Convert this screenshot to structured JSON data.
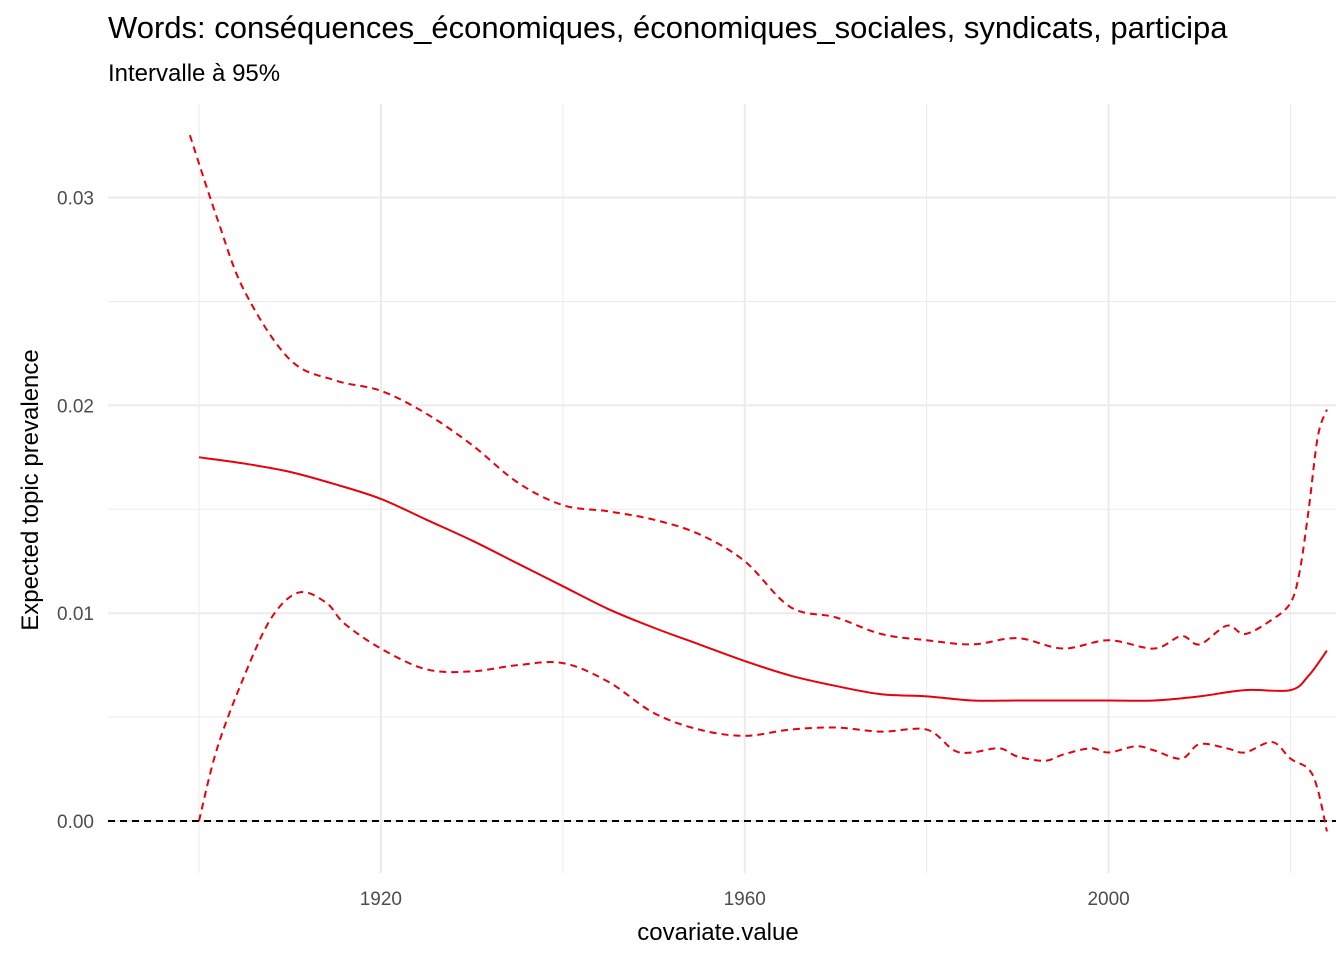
{
  "chart_data": {
    "type": "line",
    "title": "Words: conséquences_économiques, économiques_sociales, syndicats, participa",
    "subtitle": "Intervalle à 95%",
    "xlabel": "covariate.value",
    "ylabel": "Expected topic prevalence",
    "xlim": [
      1890,
      2025
    ],
    "ylim": [
      -0.0025,
      0.0345
    ],
    "x_ticks": [
      1920,
      1960,
      2000
    ],
    "x_tick_labels": [
      "1920",
      "1960",
      "2000"
    ],
    "y_ticks": [
      0,
      0.01,
      0.02,
      0.03
    ],
    "y_tick_labels": [
      "0.00",
      "0.01",
      "0.02",
      "0.03"
    ],
    "grid": true,
    "reference_line": {
      "y": 0,
      "style": "dashed",
      "color": "#000000"
    },
    "colors": {
      "series": "#e8000b",
      "grid": "#ebebeb",
      "reference": "#000000",
      "tick_text": "#4d4d4d"
    },
    "series": [
      {
        "role": "estimate",
        "style": "solid",
        "x": [
          1900,
          1905,
          1910,
          1915,
          1920,
          1925,
          1930,
          1935,
          1940,
          1945,
          1950,
          1955,
          1960,
          1965,
          1970,
          1975,
          1980,
          1985,
          1990,
          1995,
          2000,
          2005,
          2010,
          2015,
          2020,
          2022,
          2024
        ],
        "y": [
          0.0175,
          0.0172,
          0.0168,
          0.0162,
          0.0155,
          0.0145,
          0.0135,
          0.0124,
          0.0113,
          0.0102,
          0.0093,
          0.0085,
          0.0077,
          0.007,
          0.0065,
          0.0061,
          0.006,
          0.0058,
          0.0058,
          0.0058,
          0.0058,
          0.0058,
          0.006,
          0.0063,
          0.0063,
          0.007,
          0.0082
        ]
      },
      {
        "role": "upper 95%",
        "style": "dashed",
        "x": [
          1899,
          1902,
          1905,
          1910,
          1915,
          1920,
          1925,
          1930,
          1935,
          1940,
          1945,
          1950,
          1955,
          1960,
          1965,
          1970,
          1975,
          1980,
          1985,
          1990,
          1995,
          2000,
          2005,
          2008,
          2010,
          2013,
          2015,
          2018,
          2020,
          2021,
          2022,
          2023,
          2024
        ],
        "y": [
          0.033,
          0.029,
          0.0255,
          0.0222,
          0.0212,
          0.0207,
          0.0196,
          0.0181,
          0.0163,
          0.0152,
          0.0149,
          0.0145,
          0.0138,
          0.0125,
          0.0103,
          0.0098,
          0.009,
          0.0087,
          0.0085,
          0.0088,
          0.0083,
          0.0087,
          0.0083,
          0.0089,
          0.0085,
          0.0094,
          0.009,
          0.0097,
          0.0105,
          0.012,
          0.015,
          0.0185,
          0.0198
        ]
      },
      {
        "role": "lower 95%",
        "style": "dashed",
        "x": [
          1900,
          1902,
          1905,
          1908,
          1911,
          1914,
          1916,
          1920,
          1925,
          1930,
          1935,
          1940,
          1945,
          1950,
          1955,
          1960,
          1965,
          1970,
          1975,
          1980,
          1983,
          1985,
          1988,
          1990,
          1993,
          1995,
          1998,
          2000,
          2003,
          2005,
          2008,
          2010,
          2013,
          2015,
          2018,
          2020,
          2022,
          2023,
          2024
        ],
        "y": [
          0.0,
          0.0035,
          0.007,
          0.0098,
          0.011,
          0.0105,
          0.0095,
          0.0083,
          0.0073,
          0.0072,
          0.0075,
          0.0076,
          0.0067,
          0.0052,
          0.0044,
          0.0041,
          0.0044,
          0.0045,
          0.0043,
          0.0044,
          0.0034,
          0.0033,
          0.0035,
          0.0031,
          0.0029,
          0.0032,
          0.0035,
          0.0033,
          0.0036,
          0.0034,
          0.003,
          0.0037,
          0.0035,
          0.0033,
          0.0038,
          0.003,
          0.0025,
          0.0015,
          -0.0005
        ]
      }
    ]
  }
}
